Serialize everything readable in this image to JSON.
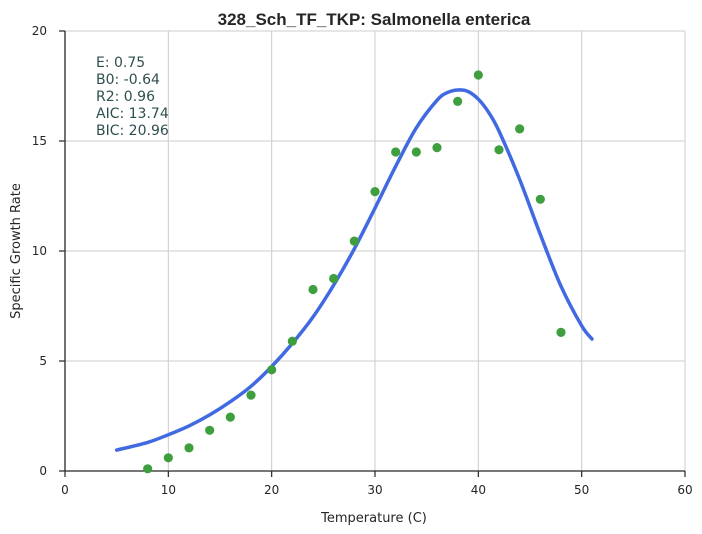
{
  "chart_data": {
    "type": "scatter",
    "title": "328_Sch_TF_TKP: Salmonella enterica",
    "xlabel": "Temperature (C)",
    "ylabel": "Specific Growth Rate",
    "xlim": [
      0,
      60
    ],
    "ylim": [
      0,
      20
    ],
    "xticks": [
      0,
      10,
      20,
      30,
      40,
      50,
      60
    ],
    "yticks": [
      0,
      5,
      10,
      15,
      20
    ],
    "grid": true,
    "colors": {
      "points": "#3f9f3f",
      "fit": "#4169e1"
    },
    "points": {
      "x": [
        8,
        10,
        12,
        14,
        16,
        18,
        20,
        22,
        24,
        26,
        28,
        30,
        32,
        34,
        36,
        38,
        40,
        42,
        44,
        46,
        48
      ],
      "y": [
        0.1,
        0.6,
        1.05,
        1.85,
        2.45,
        3.45,
        4.6,
        5.9,
        8.25,
        8.75,
        10.45,
        12.7,
        14.5,
        14.5,
        14.7,
        16.8,
        18.0,
        14.6,
        15.55,
        12.35,
        6.3
      ]
    },
    "fit": {
      "x": [
        5,
        8,
        10,
        12,
        14,
        16,
        18,
        20,
        22,
        24,
        26,
        28,
        30,
        32,
        34,
        36,
        37,
        38,
        39,
        40,
        41,
        42,
        44,
        46,
        48,
        50,
        51
      ],
      "y": [
        0.95,
        1.3,
        1.65,
        2.05,
        2.55,
        3.15,
        3.85,
        4.75,
        5.8,
        7.0,
        8.45,
        10.1,
        11.95,
        13.85,
        15.6,
        16.85,
        17.2,
        17.32,
        17.25,
        16.9,
        16.3,
        15.45,
        13.25,
        10.75,
        8.4,
        6.6,
        6.0
      ]
    },
    "stats": [
      {
        "label": "E:",
        "value": "0.75"
      },
      {
        "label": "B0:",
        "value": "-0.64"
      },
      {
        "label": "R2:",
        "value": "0.96"
      },
      {
        "label": "AIC:",
        "value": "13.74"
      },
      {
        "label": "BIC:",
        "value": "20.96"
      }
    ]
  }
}
